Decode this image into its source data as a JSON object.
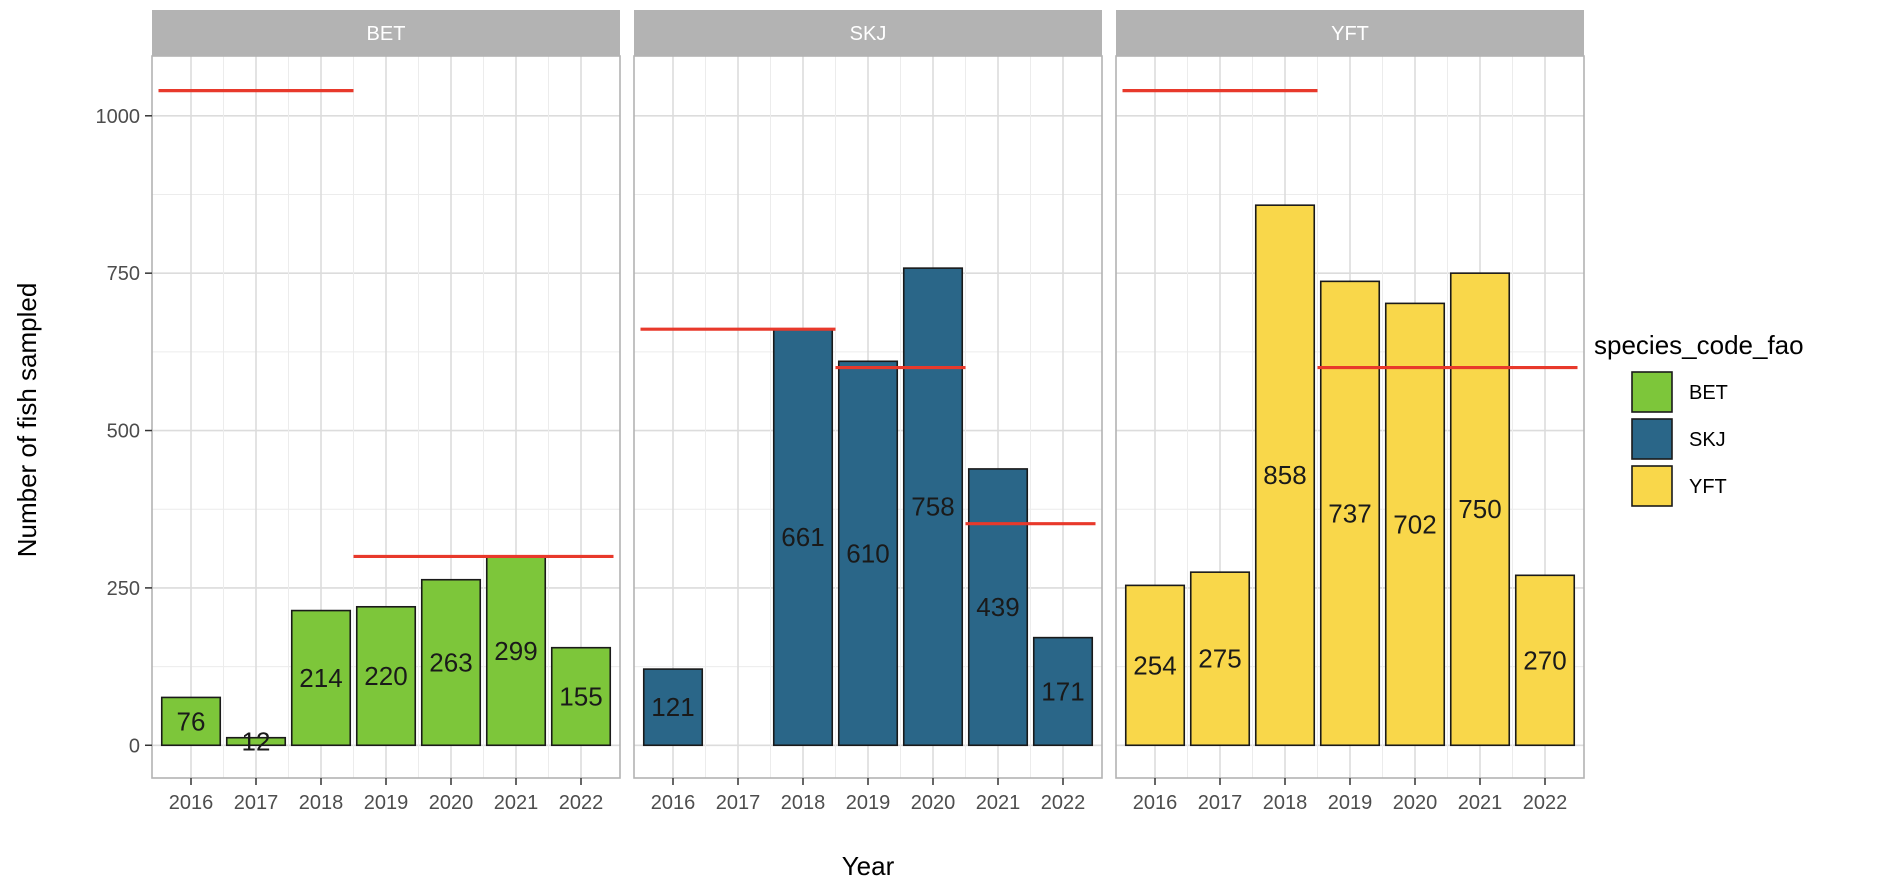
{
  "chart_data": {
    "type": "bar",
    "facet_by": "species_code_fao",
    "xlabel": "Year",
    "ylabel": "Number of fish sampled",
    "ylim": [
      -52,
      1095
    ],
    "yticks": [
      0,
      250,
      500,
      750,
      1000
    ],
    "categories": [
      "2016",
      "2017",
      "2018",
      "2019",
      "2020",
      "2021",
      "2022"
    ],
    "grid": true,
    "legend": {
      "title": "species_code_fao",
      "position": "right",
      "items": [
        {
          "label": "BET",
          "color": "#7DC63A"
        },
        {
          "label": "SKJ",
          "color": "#2A6688"
        },
        {
          "label": "YFT",
          "color": "#F9D74A"
        }
      ]
    },
    "target_line_color": "#E8392B",
    "panels": [
      {
        "name": "BET",
        "color": "#7DC63A",
        "values": [
          76,
          12,
          214,
          220,
          263,
          299,
          155
        ],
        "labels": [
          "76",
          "12",
          "214",
          "220",
          "263",
          "299",
          "155"
        ],
        "targets": [
          {
            "from": "2016",
            "to": "2018",
            "value": 1040
          },
          {
            "from": "2019",
            "to": "2022",
            "value": 300
          }
        ]
      },
      {
        "name": "SKJ",
        "color": "#2A6688",
        "values": [
          121,
          null,
          661,
          610,
          758,
          439,
          171
        ],
        "labels": [
          "121",
          "",
          "661",
          "610",
          "758",
          "439",
          "171"
        ],
        "targets": [
          {
            "from": "2016",
            "to": "2018",
            "value": 661
          },
          {
            "from": "2019",
            "to": "2020",
            "value": 600
          },
          {
            "from": "2021",
            "to": "2022",
            "value": 352
          }
        ]
      },
      {
        "name": "YFT",
        "color": "#F9D74A",
        "values": [
          254,
          275,
          858,
          737,
          702,
          750,
          270
        ],
        "labels": [
          "254",
          "275",
          "858",
          "737",
          "702",
          "750",
          "270"
        ],
        "targets": [
          {
            "from": "2016",
            "to": "2018",
            "value": 1040
          },
          {
            "from": "2019",
            "to": "2022",
            "value": 600
          }
        ]
      }
    ]
  }
}
